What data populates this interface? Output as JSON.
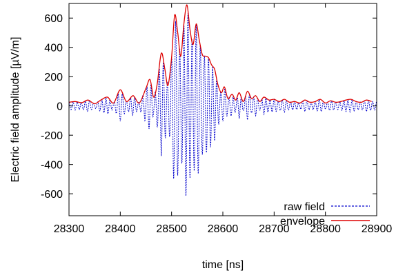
{
  "chart_data": {
    "type": "line",
    "xlabel": "time [ns]",
    "ylabel": "Electric field amplitude [µV/m]",
    "xlim": [
      28300,
      28900
    ],
    "ylim": [
      -750,
      700
    ],
    "x_ticks": [
      "28300",
      "28400",
      "28500",
      "28600",
      "28700",
      "28800",
      "28900"
    ],
    "y_ticks": [
      "600",
      "400",
      "200",
      "0",
      "-200",
      "-400",
      "-600"
    ],
    "x_tick_values": [
      28300,
      28400,
      28500,
      28600,
      28700,
      28800,
      28900
    ],
    "y_tick_values": [
      600,
      400,
      200,
      0,
      -200,
      -400,
      -600
    ],
    "grid": false,
    "legend_position": "bottom-right",
    "series": [
      {
        "name": "raw field",
        "style": "dotted",
        "color": "#0000cc",
        "description_period_ns": 8,
        "x": [
          28300,
          28350,
          28400,
          28450,
          28500,
          28550,
          28600,
          28650,
          28700,
          28750,
          28800,
          28850,
          28890
        ],
        "values": [
          25,
          25,
          20,
          100,
          420,
          680,
          450,
          60,
          30,
          20,
          20,
          30,
          20
        ]
      },
      {
        "name": "envelope",
        "style": "solid",
        "color": "#dd0000",
        "x": [
          28300,
          28312,
          28325,
          28337,
          28350,
          28362,
          28375,
          28387,
          28400,
          28412,
          28425,
          28437,
          28450,
          28458,
          28465,
          28472,
          28480,
          28487,
          28493,
          28500,
          28506,
          28512,
          28518,
          28524,
          28530,
          28536,
          28542,
          28548,
          28554,
          28560,
          28566,
          28572,
          28578,
          28584,
          28590,
          28597,
          28603,
          28610,
          28618,
          28625,
          28632,
          28640,
          28648,
          28656,
          28664,
          28672,
          28680,
          28690,
          28700,
          28710,
          28720,
          28730,
          28740,
          28750,
          28760,
          28770,
          28780,
          28790,
          28800,
          28810,
          28820,
          28830,
          28840,
          28850,
          28860,
          28870,
          28880,
          28890
        ],
        "values": [
          25,
          30,
          22,
          40,
          15,
          40,
          60,
          20,
          110,
          30,
          70,
          20,
          120,
          180,
          60,
          150,
          360,
          250,
          140,
          330,
          620,
          500,
          340,
          560,
          690,
          520,
          420,
          560,
          450,
          350,
          340,
          330,
          280,
          250,
          150,
          90,
          130,
          50,
          80,
          40,
          90,
          30,
          100,
          50,
          70,
          30,
          60,
          40,
          45,
          30,
          45,
          25,
          30,
          20,
          40,
          25,
          30,
          45,
          20,
          35,
          25,
          30,
          40,
          45,
          30,
          25,
          40,
          30
        ]
      }
    ]
  }
}
